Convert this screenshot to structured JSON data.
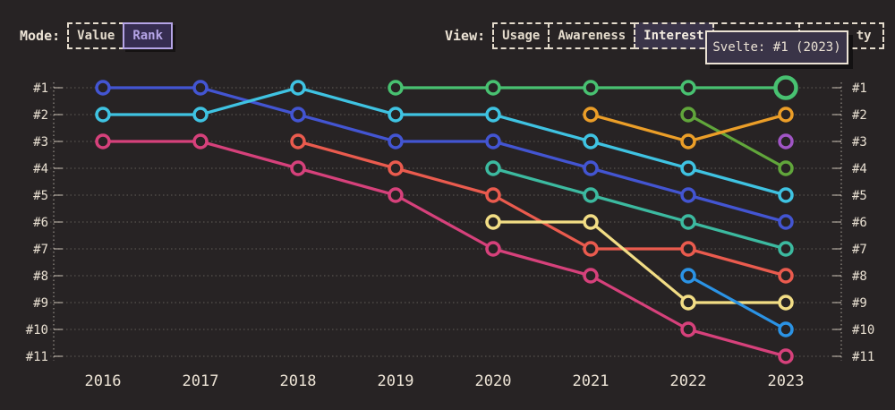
{
  "colors": {
    "background": "#272324",
    "text_cream": "#ece3d5",
    "accent_purple": "#b5a4e6",
    "selected_fill": "#3a3449",
    "tooltip_bg": "#3a3448",
    "grid": "#ece3d5"
  },
  "mode": {
    "label": "Mode:",
    "options": [
      {
        "label": "Value",
        "selected": false
      },
      {
        "label": "Rank",
        "selected": true
      }
    ]
  },
  "view": {
    "label": "View:",
    "options": [
      {
        "label": "Usage",
        "selected": false
      },
      {
        "label": "Awareness",
        "selected": false
      },
      {
        "label": "Interest",
        "selected": true
      }
    ],
    "partial_options": [
      {
        "visible_text": ""
      },
      {
        "visible_text": "ty"
      }
    ]
  },
  "tooltip": {
    "text": "Svelte: #1 (2023)"
  },
  "chart_data": {
    "type": "line",
    "variant": "bump-rank",
    "title": "",
    "x": [
      2016,
      2017,
      2018,
      2019,
      2020,
      2021,
      2022,
      2023
    ],
    "x_labels": [
      "2016",
      "2017",
      "2018",
      "2019",
      "2020",
      "2021",
      "2022",
      "2023"
    ],
    "y_tick_labels": [
      "#1",
      "#2",
      "#3",
      "#4",
      "#5",
      "#6",
      "#7",
      "#8",
      "#9",
      "#10",
      "#11"
    ],
    "y_axis": {
      "min": 1,
      "max": 11,
      "inverted": true,
      "label_both_sides": true
    },
    "grid": "dotted-horizontal",
    "legend_position": "none",
    "series": [
      {
        "id": "royal-blue",
        "color": "#4355d2",
        "ranks": [
          1,
          1,
          2,
          3,
          3,
          4,
          5,
          6
        ]
      },
      {
        "id": "crimson-pink",
        "color": "#d6417b",
        "ranks": [
          3,
          3,
          4,
          5,
          7,
          8,
          10,
          11
        ]
      },
      {
        "id": "sky-cyan",
        "color": "#3fc3e2",
        "ranks": [
          2,
          2,
          1,
          2,
          2,
          3,
          4,
          5
        ]
      },
      {
        "id": "tomato-red",
        "color": "#ea5b4e",
        "ranks": [
          null,
          null,
          3,
          4,
          5,
          7,
          7,
          8
        ]
      },
      {
        "id": "teal",
        "color": "#3cbaa0",
        "ranks": [
          null,
          null,
          null,
          null,
          4,
          5,
          6,
          7
        ]
      },
      {
        "id": "khaki-yellow",
        "color": "#f2dd85",
        "ranks": [
          null,
          null,
          null,
          null,
          6,
          6,
          9,
          9
        ]
      },
      {
        "id": "olive-green",
        "color": "#61a63b",
        "ranks": [
          null,
          null,
          null,
          null,
          null,
          null,
          2,
          4
        ]
      },
      {
        "id": "dodger-blue",
        "color": "#2b93e5",
        "ranks": [
          null,
          null,
          null,
          null,
          null,
          null,
          8,
          10
        ]
      },
      {
        "id": "purple",
        "color": "#a055c5",
        "ranks": [
          null,
          null,
          null,
          null,
          null,
          null,
          null,
          3
        ]
      },
      {
        "id": "amber-orange",
        "color": "#eb9e28",
        "ranks": [
          null,
          null,
          null,
          null,
          null,
          2,
          3,
          2
        ]
      },
      {
        "id": "svelte-green",
        "name": "Svelte",
        "color": "#48c171",
        "ranks": [
          null,
          null,
          null,
          1,
          1,
          1,
          1,
          1
        ],
        "highlight": {
          "year": 2023,
          "rank": 1
        }
      }
    ],
    "highlight_tooltip": "Svelte: #1 (2023)"
  }
}
